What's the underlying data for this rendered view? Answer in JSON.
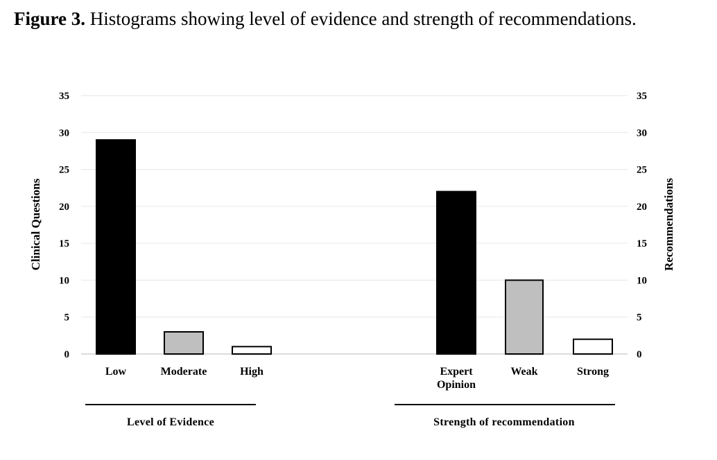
{
  "caption": {
    "label": "Figure 3.",
    "text": " Histograms showing level of evidence and strength of recommendations."
  },
  "chart_data": {
    "type": "bar",
    "y_left_label": "Clinical Questions",
    "y_right_label": "Recommendations",
    "ylim": [
      0,
      35
    ],
    "yticks": [
      "0",
      "5",
      "10",
      "15",
      "20",
      "25",
      "30",
      "35"
    ],
    "grid": true,
    "groups": [
      {
        "title": "Level of Evidence",
        "categories": [
          "Low",
          "Moderate",
          "High"
        ],
        "values": [
          29,
          3,
          1
        ],
        "colors": [
          "#000000",
          "#bfbfbf",
          "#ffffff"
        ]
      },
      {
        "title": "Strength of recommendation",
        "categories": [
          [
            "Expert",
            "Opinion"
          ],
          "Weak",
          "Strong"
        ],
        "values": [
          22,
          10,
          2
        ],
        "colors": [
          "#000000",
          "#bfbfbf",
          "#ffffff"
        ]
      }
    ]
  }
}
